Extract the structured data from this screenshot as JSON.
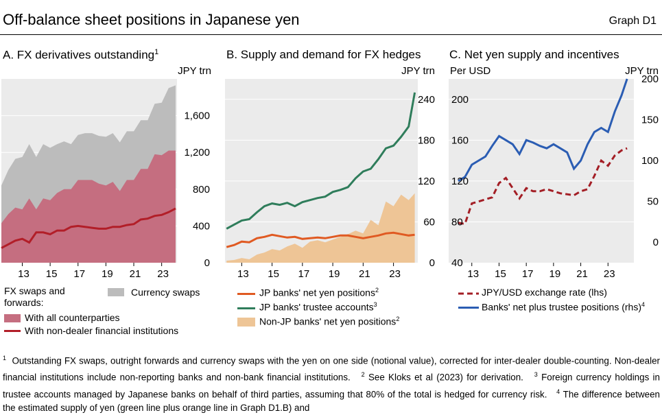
{
  "header": {
    "title": "Off-balance sheet positions in Japanese yen",
    "graph_label": "Graph D1"
  },
  "panels": {
    "a": {
      "title": "A. FX derivatives outstanding",
      "note": "1",
      "unit_right": "JPY trn"
    },
    "b": {
      "title": "B. Supply and demand for FX hedges",
      "unit_right": "JPY trn"
    },
    "c": {
      "title": "C. Net yen supply and incentives",
      "unit_left": "Per USD",
      "unit_right": "JPY trn"
    }
  },
  "legend": {
    "a": {
      "swaps_forwards_label": "FX swaps and forwards:",
      "all_counterparties": "With all counterparties",
      "non_dealer": "With non-dealer financial institutions",
      "currency_swaps": "Currency swaps"
    },
    "b": {
      "jp_banks_net": "JP banks' net yen positions",
      "jp_banks_net_note": "2",
      "jp_trustee": "JP banks' trustee accounts",
      "jp_trustee_note": "3",
      "non_jp": "Non-JP banks' net yen positions",
      "non_jp_note": "2"
    },
    "c": {
      "fx_rate": "JPY/USD exchange rate (lhs)",
      "banks_net": "Banks' net plus trustee positions (rhs)",
      "banks_net_note": "4"
    }
  },
  "footnotes": {
    "n1_mark": "1",
    "n1": "Outstanding FX swaps, outright forwards and currency swaps with the yen on one side (notional value), corrected for inter-dealer double-counting. Non-dealer financial institutions include non-reporting banks and non-bank financial institutions.",
    "n2_mark": "2",
    "n2": "See Kloks et al (2023) for derivation.",
    "n3_mark": "3",
    "n3": "Foreign currency holdings in trustee accounts managed by Japanese banks on behalf of third parties, assuming that 80% of the total is hedged for currency risk.",
    "n4_mark": "4",
    "n4": "The difference between the estimated supply of yen (green line plus orange line in Graph D1.B) and"
  },
  "colors": {
    "gray": "#bcbcbc",
    "pink": "#c56e80",
    "red": "#b21e28",
    "green": "#2f7d5b",
    "orange": "#e05a22",
    "tan": "#eec596",
    "blue": "#2b5db3",
    "darkred": "#a31e25",
    "plot_bg": "#ebebeb"
  },
  "chart_data": [
    {
      "type": "area",
      "title": "A. FX derivatives outstanding",
      "ylabel": "JPY trn",
      "ylim": [
        0,
        2000
      ],
      "yticks": [
        0,
        400,
        800,
        1200,
        1600
      ],
      "xlim": [
        2011.5,
        2024.1
      ],
      "xticks": [
        2013,
        2015,
        2017,
        2019,
        2021,
        2023
      ],
      "xtick_labels": [
        "13",
        "15",
        "17",
        "19",
        "21",
        "23"
      ],
      "series": [
        {
          "name": "Currency swaps",
          "kind": "area",
          "x": [
            2011.5,
            2012,
            2012.5,
            2013,
            2013.5,
            2014,
            2014.5,
            2015,
            2015.5,
            2016,
            2016.5,
            2017,
            2017.5,
            2018,
            2018.5,
            2019,
            2019.5,
            2020,
            2020.5,
            2021,
            2021.5,
            2022,
            2022.5,
            2023,
            2023.5,
            2024
          ],
          "values": [
            840,
            1010,
            1130,
            1150,
            1290,
            1150,
            1290,
            1250,
            1290,
            1320,
            1290,
            1390,
            1410,
            1410,
            1380,
            1370,
            1410,
            1310,
            1430,
            1430,
            1550,
            1550,
            1730,
            1740,
            1900,
            1930
          ]
        },
        {
          "name": "With all counterparties",
          "kind": "area",
          "x": [
            2011.5,
            2012,
            2012.5,
            2013,
            2013.5,
            2014,
            2014.5,
            2015,
            2015.5,
            2016,
            2016.5,
            2017,
            2017.5,
            2018,
            2018.5,
            2019,
            2019.5,
            2020,
            2020.5,
            2021,
            2021.5,
            2022,
            2022.5,
            2023,
            2023.5,
            2024
          ],
          "values": [
            430,
            530,
            600,
            580,
            700,
            580,
            700,
            680,
            760,
            800,
            800,
            900,
            900,
            900,
            860,
            840,
            880,
            780,
            900,
            900,
            1020,
            1020,
            1180,
            1170,
            1220,
            1220
          ]
        },
        {
          "name": "With non-dealer financial institutions",
          "kind": "line",
          "x": [
            2011.5,
            2012,
            2012.5,
            2013,
            2013.5,
            2014,
            2014.5,
            2015,
            2015.5,
            2016,
            2016.5,
            2017,
            2017.5,
            2018,
            2018.5,
            2019,
            2019.5,
            2020,
            2020.5,
            2021,
            2021.5,
            2022,
            2022.5,
            2023,
            2023.5,
            2024
          ],
          "values": [
            160,
            200,
            240,
            260,
            220,
            330,
            330,
            310,
            350,
            350,
            390,
            400,
            390,
            380,
            370,
            370,
            390,
            390,
            410,
            420,
            470,
            480,
            510,
            520,
            550,
            590
          ]
        }
      ]
    },
    {
      "type": "line",
      "title": "B. Supply and demand for FX hedges",
      "ylabel": "JPY trn",
      "ylim": [
        0,
        270
      ],
      "yticks": [
        0,
        60,
        120,
        180,
        240
      ],
      "xlim": [
        2011.9,
        2024.6
      ],
      "xticks": [
        2013,
        2015,
        2017,
        2019,
        2021,
        2023
      ],
      "xtick_labels": [
        "13",
        "15",
        "17",
        "19",
        "21",
        "23"
      ],
      "series": [
        {
          "name": "Non-JP banks' net yen positions",
          "kind": "area",
          "x": [
            2012,
            2012.5,
            2013,
            2013.5,
            2014,
            2014.5,
            2015,
            2015.5,
            2016,
            2016.5,
            2017,
            2017.5,
            2018,
            2018.5,
            2019,
            2019.5,
            2020,
            2020.5,
            2021,
            2021.5,
            2022,
            2022.5,
            2023,
            2023.5,
            2024,
            2024.4
          ],
          "values": [
            3,
            4,
            7,
            5,
            12,
            15,
            20,
            18,
            24,
            28,
            22,
            31,
            33,
            30,
            34,
            38,
            42,
            47,
            43,
            63,
            55,
            90,
            83,
            100,
            92,
            102
          ]
        },
        {
          "name": "JP banks' trustee accounts",
          "kind": "line",
          "x": [
            2012,
            2012.5,
            2013,
            2013.5,
            2014,
            2014.5,
            2015,
            2015.5,
            2016,
            2016.5,
            2017,
            2017.5,
            2018,
            2018.5,
            2019,
            2019.5,
            2020,
            2020.5,
            2021,
            2021.5,
            2022,
            2022.5,
            2023,
            2023.5,
            2024,
            2024.4
          ],
          "values": [
            50,
            56,
            62,
            64,
            74,
            83,
            87,
            85,
            88,
            83,
            89,
            92,
            95,
            97,
            104,
            107,
            111,
            124,
            134,
            138,
            152,
            168,
            172,
            185,
            200,
            250
          ]
        },
        {
          "name": "JP banks' net yen positions",
          "kind": "line",
          "x": [
            2012,
            2012.5,
            2013,
            2013.5,
            2014,
            2014.5,
            2015,
            2015.5,
            2016,
            2016.5,
            2017,
            2017.5,
            2018,
            2018.5,
            2019,
            2019.5,
            2020,
            2020.5,
            2021,
            2021.5,
            2022,
            2022.5,
            2023,
            2023.5,
            2024,
            2024.4
          ],
          "values": [
            23,
            26,
            31,
            30,
            36,
            38,
            41,
            39,
            37,
            38,
            35,
            36,
            37,
            36,
            38,
            40,
            40,
            38,
            36,
            38,
            40,
            43,
            44,
            42,
            40,
            41
          ]
        }
      ]
    },
    {
      "type": "line",
      "title": "C. Net yen supply and incentives",
      "ylabel_left": "Per USD",
      "ylim_left": [
        40,
        220
      ],
      "yticks_left": [
        40,
        80,
        120,
        160,
        200
      ],
      "ylabel_right": "JPY trn",
      "ylim_right": [
        -25,
        200
      ],
      "yticks_right": [
        0,
        50,
        100,
        150,
        200
      ],
      "xlim": [
        2011.3,
        2024.9
      ],
      "xticks": [
        2013,
        2015,
        2017,
        2019,
        2021,
        2023
      ],
      "xtick_labels": [
        "13",
        "15",
        "17",
        "19",
        "21",
        "23"
      ],
      "series": [
        {
          "name": "JPY/USD exchange rate (lhs)",
          "axis": "left",
          "kind": "dashed",
          "x": [
            2012,
            2012.5,
            2013,
            2013.5,
            2014,
            2014.5,
            2015,
            2015.5,
            2016,
            2016.5,
            2017,
            2017.5,
            2018,
            2018.5,
            2019,
            2019.5,
            2020,
            2020.5,
            2021,
            2021.5,
            2022,
            2022.5,
            2023,
            2023.5,
            2024,
            2024.4
          ],
          "values": [
            79,
            78,
            98,
            100,
            102,
            104,
            118,
            123,
            113,
            103,
            113,
            110,
            110,
            112,
            110,
            108,
            107,
            106,
            110,
            112,
            125,
            140,
            135,
            145,
            150,
            152
          ]
        },
        {
          "name": "Banks' net plus trustee positions (rhs)",
          "axis": "right",
          "kind": "line",
          "x": [
            2012,
            2012.5,
            2013,
            2013.5,
            2014,
            2014.5,
            2015,
            2015.5,
            2016,
            2016.5,
            2017,
            2017.5,
            2018,
            2018.5,
            2019,
            2019.5,
            2020,
            2020.5,
            2021,
            2021.5,
            2022,
            2022.5,
            2023,
            2023.5,
            2024,
            2024.4
          ],
          "values": [
            75,
            80,
            95,
            100,
            105,
            118,
            130,
            125,
            120,
            108,
            125,
            122,
            118,
            115,
            120,
            115,
            110,
            90,
            100,
            120,
            135,
            140,
            135,
            160,
            180,
            200
          ]
        }
      ]
    }
  ]
}
